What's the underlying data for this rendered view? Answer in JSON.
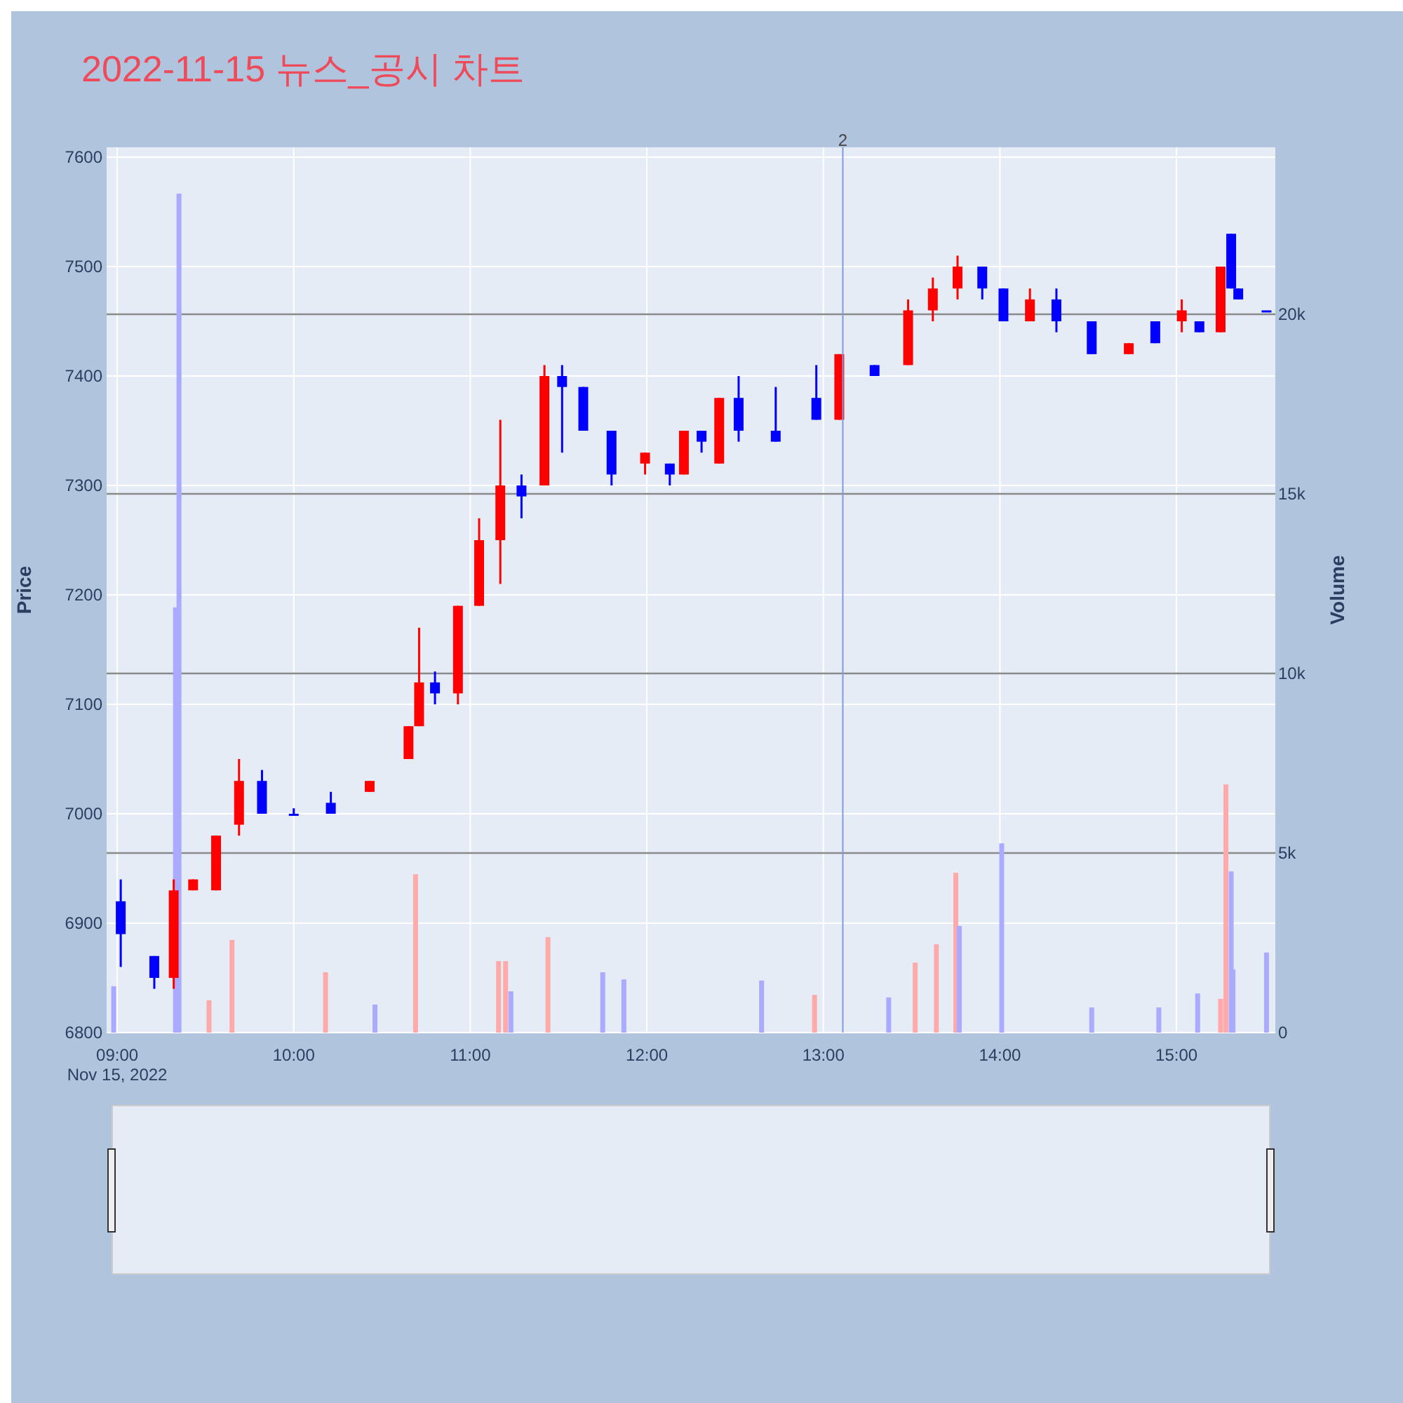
{
  "chart_data": {
    "type": "candlestick",
    "title": "2022-11-15 뉴스_공시 차트",
    "ylabel": "Price",
    "y2label": "Volume",
    "annotations": [
      "Nov 15, 2022",
      {
        "text": "2",
        "x": 13.11,
        "y": 7609
      }
    ],
    "xlim": [
      8.94,
      15.56
    ],
    "xticks": [
      {
        "value": 9,
        "label": "09:00"
      },
      {
        "value": 10,
        "label": "10:00"
      },
      {
        "value": 11,
        "label": "11:00"
      },
      {
        "value": 12,
        "label": "12:00"
      },
      {
        "value": 13,
        "label": "13:00"
      },
      {
        "value": 14,
        "label": "14:00"
      },
      {
        "value": 15,
        "label": "15:00"
      }
    ],
    "ylim": [
      6800,
      7609
    ],
    "yticks": [
      6800,
      6900,
      7000,
      7100,
      7200,
      7300,
      7400,
      7500,
      7600
    ],
    "y2lim": [
      0,
      24650
    ],
    "y2ticks": [
      {
        "value": 0,
        "label": "0"
      },
      {
        "value": 5000,
        "label": "5k"
      },
      {
        "value": 10000,
        "label": "10k"
      },
      {
        "value": 15000,
        "label": "15k"
      },
      {
        "value": 20000,
        "label": "20k"
      }
    ],
    "grid": true,
    "ref_lines": [
      {
        "axis": "x",
        "value": 13.11,
        "color": "#7f9be0"
      }
    ],
    "series": [
      {
        "x": [
          9.02,
          9.21,
          9.32,
          9.43,
          9.56,
          9.69,
          9.82,
          10.0,
          10.21,
          10.43,
          10.65,
          10.71,
          10.8,
          10.93,
          11.05,
          11.17,
          11.29,
          11.42,
          11.52,
          11.64,
          11.8,
          11.99,
          12.13,
          12.21,
          12.31,
          12.41,
          12.52,
          12.73,
          12.96,
          13.09,
          13.29,
          13.48,
          13.62,
          13.76,
          13.9,
          14.02,
          14.17,
          14.32,
          14.52,
          14.73,
          14.88,
          15.03,
          15.13,
          15.25,
          15.31,
          15.35,
          15.51
        ],
        "ohlc": [
          [
            6920,
            6940,
            6860,
            6890
          ],
          [
            6870,
            6870,
            6840,
            6850
          ],
          [
            6850,
            6940,
            6840,
            6930
          ],
          [
            6930,
            6940,
            6930,
            6940
          ],
          [
            6930,
            6980,
            6930,
            6980
          ],
          [
            6990,
            7050,
            6980,
            7030
          ],
          [
            7030,
            7040,
            7000,
            7000
          ],
          [
            7000,
            7005,
            7000,
            7000
          ],
          [
            7010,
            7020,
            7000,
            7000
          ],
          [
            7020,
            7030,
            7020,
            7030
          ],
          [
            7050,
            7080,
            7050,
            7080
          ],
          [
            7080,
            7170,
            7080,
            7120
          ],
          [
            7120,
            7130,
            7100,
            7110
          ],
          [
            7110,
            7190,
            7100,
            7190
          ],
          [
            7190,
            7270,
            7190,
            7250
          ],
          [
            7250,
            7360,
            7210,
            7300
          ],
          [
            7300,
            7310,
            7270,
            7290
          ],
          [
            7300,
            7410,
            7300,
            7400
          ],
          [
            7400,
            7410,
            7330,
            7390
          ],
          [
            7390,
            7390,
            7350,
            7350
          ],
          [
            7350,
            7350,
            7300,
            7310
          ],
          [
            7320,
            7330,
            7310,
            7330
          ],
          [
            7320,
            7320,
            7300,
            7310
          ],
          [
            7310,
            7350,
            7310,
            7350
          ],
          [
            7350,
            7350,
            7330,
            7340
          ],
          [
            7320,
            7380,
            7320,
            7380
          ],
          [
            7380,
            7400,
            7340,
            7350
          ],
          [
            7350,
            7390,
            7340,
            7340
          ],
          [
            7380,
            7410,
            7360,
            7360
          ],
          [
            7360,
            7420,
            7360,
            7420
          ],
          [
            7410,
            7410,
            7400,
            7400
          ],
          [
            7410,
            7470,
            7410,
            7460
          ],
          [
            7460,
            7490,
            7450,
            7480
          ],
          [
            7480,
            7510,
            7470,
            7500
          ],
          [
            7500,
            7500,
            7470,
            7480
          ],
          [
            7480,
            7480,
            7450,
            7450
          ],
          [
            7450,
            7480,
            7450,
            7470
          ],
          [
            7470,
            7480,
            7440,
            7450
          ],
          [
            7450,
            7450,
            7420,
            7420
          ],
          [
            7420,
            7430,
            7420,
            7430
          ],
          [
            7450,
            7450,
            7430,
            7430
          ],
          [
            7450,
            7470,
            7440,
            7460
          ],
          [
            7450,
            7450,
            7440,
            7440
          ],
          [
            7440,
            7500,
            7440,
            7500
          ],
          [
            7530,
            7530,
            7480,
            7480
          ],
          [
            7480,
            7480,
            7470,
            7470
          ],
          [
            7460,
            7460,
            7460,
            7460
          ]
        ],
        "colors": [
          "#0000ff",
          "#0000ff",
          "#ff0000",
          "#ff0000",
          "#ff0000",
          "#ff0000",
          "#0000ff",
          "#0000ff",
          "#0000ff",
          "#ff0000",
          "#ff0000",
          "#ff0000",
          "#0000ff",
          "#ff0000",
          "#ff0000",
          "#ff0000",
          "#0000ff",
          "#ff0000",
          "#0000ff",
          "#0000ff",
          "#0000ff",
          "#ff0000",
          "#0000ff",
          "#ff0000",
          "#0000ff",
          "#ff0000",
          "#0000ff",
          "#0000ff",
          "#0000ff",
          "#ff0000",
          "#0000ff",
          "#ff0000",
          "#ff0000",
          "#ff0000",
          "#0000ff",
          "#0000ff",
          "#ff0000",
          "#0000ff",
          "#0000ff",
          "#ff0000",
          "#0000ff",
          "#ff0000",
          "#0000ff",
          "#ff0000",
          "#0000ff",
          "#0000ff",
          "#0000ff"
        ]
      },
      {
        "type": "bar",
        "axis": "y2",
        "x": [
          8.98,
          9.33,
          9.35,
          9.52,
          9.65,
          10.18,
          10.46,
          10.69,
          11.16,
          11.2,
          11.23,
          11.44,
          11.75,
          11.87,
          12.65,
          12.95,
          13.37,
          13.52,
          13.64,
          13.75,
          13.77,
          14.01,
          14.52,
          14.9,
          15.12,
          15.25,
          15.28,
          15.31,
          15.32,
          15.51
        ],
        "values": [
          1290,
          11840,
          23360,
          900,
          2580,
          1680,
          780,
          4410,
          1990,
          1990,
          1150,
          2660,
          1680,
          1480,
          1450,
          1050,
          980,
          1950,
          2460,
          4450,
          2970,
          5270,
          700,
          700,
          1090,
          940,
          6910,
          4490,
          1760,
          2230
        ],
        "colors": [
          "#aaaaff",
          "#aaaaff",
          "#aaaaff",
          "#ffaaaa",
          "#ffaaaa",
          "#ffaaaa",
          "#aaaaff",
          "#ffaaaa",
          "#ffaaaa",
          "#ffaaaa",
          "#aaaaff",
          "#ffaaaa",
          "#aaaaff",
          "#aaaaff",
          "#aaaaff",
          "#ffaaaa",
          "#aaaaff",
          "#ffaaaa",
          "#ffaaaa",
          "#ffaaaa",
          "#aaaaff",
          "#aaaaff",
          "#aaaaff",
          "#aaaaff",
          "#aaaaff",
          "#ffaaaa",
          "#ffaaaa",
          "#aaaaff",
          "#aaaaff",
          "#aaaaff"
        ]
      }
    ]
  }
}
